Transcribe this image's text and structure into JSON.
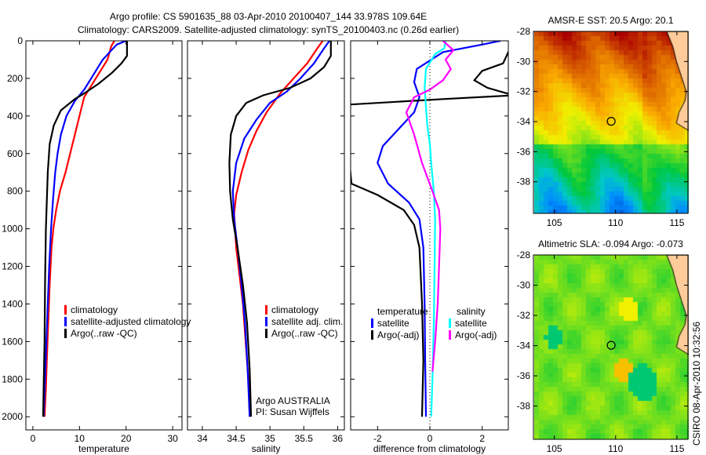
{
  "title_line1": "Argo profile: CS 5901635_88 03-Apr-2010 20100407_144 33.978S 109.64E",
  "title_line2": "Climatology: CARS2009. Satellite-adjusted climatology: synTS_20100403.nc (0.26d earlier)",
  "footer_right": "CSIRO 08-Apr-2010 10:32:56",
  "chart_data": [
    {
      "type": "line",
      "id": "temperature",
      "xlabel": "temperature",
      "xlim": [
        -1.5,
        32
      ],
      "xticks": [
        0,
        10,
        20,
        30
      ],
      "ylim": [
        0,
        2070
      ],
      "yticks": [
        0,
        200,
        400,
        600,
        800,
        1000,
        1200,
        1400,
        1600,
        1800,
        2000
      ],
      "y_reversed": true,
      "legend": [
        "climatology",
        "satellite-adjusted climatology",
        "Argo(..raw -QC)"
      ],
      "series": [
        {
          "name": "climatology",
          "color": "#ff0000",
          "x": [
            17.5,
            16.8,
            16,
            13.5,
            11,
            10,
            9,
            8,
            7,
            5.8,
            5,
            4.4,
            4,
            3.6,
            3.3,
            3,
            2.8,
            2.5
          ],
          "y": [
            0,
            30,
            100,
            200,
            300,
            400,
            500,
            600,
            700,
            800,
            900,
            1000,
            1100,
            1300,
            1500,
            1700,
            1850,
            2000
          ]
        },
        {
          "name": "satellite-adjusted climatology",
          "color": "#0000ff",
          "x": [
            20,
            18,
            15,
            12.5,
            11,
            9,
            7.2,
            6,
            5.3,
            4.8,
            4.3,
            3.9,
            3.5,
            3.2,
            2.9,
            2.6,
            2.3
          ],
          "y": [
            0,
            20,
            100,
            200,
            260,
            320,
            400,
            500,
            600,
            700,
            850,
            1000,
            1200,
            1400,
            1600,
            1800,
            2000
          ]
        },
        {
          "name": "Argo(..raw -QC)",
          "color": "#000000",
          "x": [
            20.2,
            20.2,
            19,
            17,
            14,
            11,
            9,
            6,
            4.5,
            3.6,
            3.2,
            3,
            2.8,
            2.6,
            2.5,
            2.3,
            2.2
          ],
          "y": [
            0,
            80,
            120,
            170,
            230,
            280,
            310,
            370,
            450,
            550,
            700,
            850,
            1000,
            1300,
            1600,
            1850,
            2000
          ]
        }
      ]
    },
    {
      "type": "line",
      "id": "salinity",
      "xlabel": "salinity",
      "xlim": [
        33.78,
        36.1
      ],
      "xticks": [
        34,
        34.5,
        35,
        35.5,
        36
      ],
      "ylim": [
        0,
        2070
      ],
      "yticks": [
        0,
        200,
        400,
        600,
        800,
        1000,
        1200,
        1400,
        1600,
        1800,
        2000
      ],
      "y_reversed": true,
      "legend": [
        "climatology",
        "satellite adj. clim.",
        "Argo(..raw -QC)"
      ],
      "annotation": [
        "Argo AUSTRALIA",
        "PI: Susan Wijffels"
      ],
      "series": [
        {
          "name": "climatology",
          "color": "#ff0000",
          "x": [
            35.78,
            35.7,
            35.55,
            35.35,
            35.15,
            34.95,
            34.8,
            34.68,
            34.58,
            34.5,
            34.47,
            34.5,
            34.55,
            34.6,
            34.64,
            34.68,
            34.7
          ],
          "y": [
            0,
            40,
            120,
            200,
            280,
            380,
            480,
            580,
            700,
            820,
            920,
            1100,
            1250,
            1400,
            1600,
            1800,
            2000
          ]
        },
        {
          "name": "satellite adj. clim.",
          "color": "#0000ff",
          "x": [
            35.88,
            35.8,
            35.65,
            35.45,
            35.25,
            35.0,
            34.8,
            34.62,
            34.5,
            34.45,
            34.47,
            34.52,
            34.58,
            34.63,
            34.67,
            34.7
          ],
          "y": [
            0,
            40,
            120,
            200,
            270,
            330,
            420,
            520,
            650,
            800,
            950,
            1100,
            1300,
            1500,
            1750,
            2000
          ]
        },
        {
          "name": "Argo(..raw -QC)",
          "color": "#000000",
          "x": [
            35.9,
            35.9,
            35.8,
            35.6,
            35.3,
            34.9,
            34.65,
            34.5,
            34.42,
            34.4,
            34.41,
            34.45,
            34.52,
            34.6,
            34.66,
            34.7,
            34.72
          ],
          "y": [
            0,
            80,
            140,
            200,
            250,
            290,
            330,
            400,
            500,
            650,
            800,
            950,
            1100,
            1300,
            1500,
            1750,
            2000
          ]
        }
      ]
    },
    {
      "type": "line",
      "id": "difference",
      "xlabel": "difference from climatology",
      "xlim": [
        -3.03,
        3.0
      ],
      "xticks": [
        -2,
        0,
        2
      ],
      "ylim": [
        0,
        2070
      ],
      "yticks": [
        0,
        200,
        400,
        600,
        800,
        1000,
        1200,
        1400,
        1600,
        1800,
        2000
      ],
      "y_reversed": true,
      "zero_line": true,
      "legend_left_title": "temperature",
      "legend_right_title": "salinity",
      "legend": [
        "satellite",
        "Argo(-adj)",
        "satellite",
        "Argo(-adj)"
      ],
      "series": [
        {
          "name": "temperature satellite",
          "color": "#0000ff",
          "x": [
            2.7,
            2.0,
            0.5,
            -0.5,
            -0.6,
            -0.4,
            -0.6,
            -1.2,
            -1.8,
            -2.0,
            -1.6,
            -0.8,
            -0.4,
            -0.25,
            -0.2,
            -0.18,
            -0.15
          ],
          "y": [
            0,
            20,
            60,
            150,
            220,
            300,
            380,
            470,
            560,
            650,
            760,
            860,
            950,
            1100,
            1400,
            1700,
            2000
          ]
        },
        {
          "name": "temperature Argo(-adj)",
          "color": "#000000",
          "x": [
            3.2,
            2.8,
            2.0,
            1.7,
            2.2,
            3.2,
            0.5,
            -3.2,
            -3.2,
            -3.0,
            -2.0,
            -1.0,
            -0.6,
            -0.4,
            -0.3,
            -0.25,
            -0.3
          ],
          "y": [
            0,
            120,
            160,
            210,
            250,
            290,
            310,
            340,
            450,
            760,
            820,
            900,
            980,
            1100,
            1400,
            1700,
            2000
          ]
        },
        {
          "name": "salinity satellite",
          "color": "#00ffff",
          "x": [
            0.6,
            0.55,
            0.2,
            -0.15,
            -0.2,
            -0.15,
            -0.1,
            0.0,
            0.05,
            0.15,
            0.2,
            0.18,
            0.15,
            0.1,
            0.05
          ],
          "y": [
            0,
            40,
            70,
            150,
            250,
            350,
            450,
            550,
            650,
            800,
            950,
            1200,
            1500,
            1800,
            2000
          ]
        },
        {
          "name": "salinity Argo(-adj)",
          "color": "#ff00ff",
          "x": [
            0.5,
            0.9,
            0.6,
            0.8,
            0.5,
            0.0,
            -0.6,
            -0.9,
            -0.6,
            -0.3,
            0.1,
            0.35,
            0.4,
            0.35,
            0.3,
            0.2,
            0.1
          ],
          "y": [
            0,
            50,
            100,
            150,
            210,
            260,
            300,
            380,
            500,
            650,
            800,
            900,
            1000,
            1200,
            1400,
            1600,
            1760
          ]
        }
      ]
    },
    {
      "type": "heatmap",
      "id": "sst-map",
      "title": "AMSR-E SST: 20.5 Argo: 20.1",
      "xlim": [
        103.3,
        115.9
      ],
      "ylim": [
        -40.1,
        -28
      ],
      "xticks": [
        105,
        110,
        115
      ],
      "yticks": [
        -28,
        -30,
        -32,
        -34,
        -36,
        -38
      ],
      "marker": {
        "lon": 109.64,
        "lat": -33.978
      }
    },
    {
      "type": "heatmap",
      "id": "sla-map",
      "title": "Altimetric SLA: -0.094 Argo: -0.073",
      "xlim": [
        103.3,
        115.9
      ],
      "ylim": [
        -40.2,
        -28
      ],
      "xticks": [
        105,
        110,
        115
      ],
      "yticks": [
        -28,
        -30,
        -32,
        -34,
        -36,
        -38
      ],
      "marker": {
        "lon": 109.64,
        "lat": -33.978
      }
    }
  ]
}
